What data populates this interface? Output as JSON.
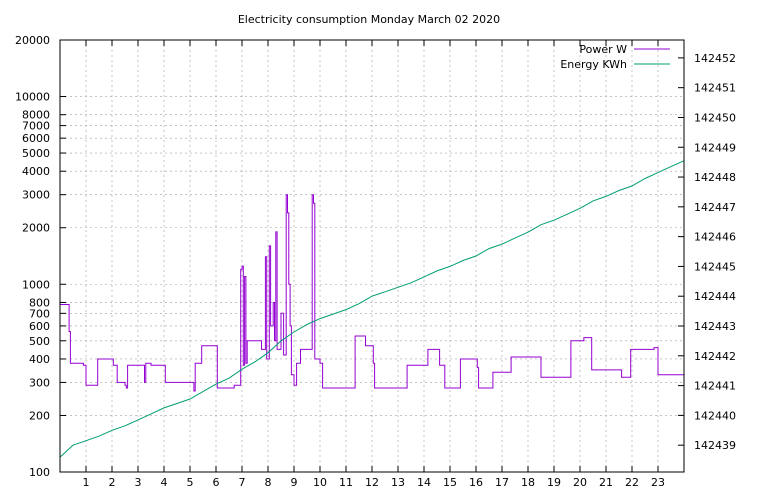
{
  "chart_data": {
    "type": "line",
    "title": "Electricity consumption Monday March 02 2020",
    "xlabel": "",
    "ylabel": "",
    "x_unit": "hour of day",
    "xlim": [
      0,
      24
    ],
    "x_ticks": [
      1,
      2,
      3,
      4,
      5,
      6,
      7,
      8,
      9,
      10,
      11,
      12,
      13,
      14,
      15,
      16,
      17,
      18,
      19,
      20,
      21,
      22,
      23
    ],
    "x_tick_labels": [
      "1",
      "2",
      "3",
      "4",
      "5",
      "6",
      "7",
      "8",
      "9",
      "10",
      "11",
      "12",
      "13",
      "14",
      "15",
      "16",
      "17",
      "18",
      "19",
      "20",
      "21",
      "22",
      "23"
    ],
    "y_left": {
      "scale": "log",
      "lim": [
        100,
        20000
      ],
      "ticks": [
        100,
        200,
        300,
        400,
        500,
        600,
        700,
        800,
        1000,
        2000,
        3000,
        4000,
        5000,
        6000,
        7000,
        8000,
        10000,
        20000
      ],
      "tick_labels": [
        "100",
        "200",
        "300",
        "400",
        "500",
        "600",
        "700",
        "800",
        "1000",
        "2000",
        "3000",
        "4000",
        "5000",
        "6000",
        "7000",
        "8000",
        "10000",
        "20000"
      ]
    },
    "y_right": {
      "scale": "linear",
      "lim": [
        142438.1,
        142452.6
      ],
      "ticks": [
        142439,
        142440,
        142441,
        142442,
        142443,
        142444,
        142445,
        142446,
        142447,
        142448,
        142449,
        142450,
        142451,
        142452
      ],
      "tick_labels": [
        "142439",
        "142440",
        "142441",
        "142442",
        "142443",
        "142444",
        "142445",
        "142446",
        "142447",
        "142448",
        "142449",
        "142450",
        "142451",
        "142452"
      ]
    },
    "grid": true,
    "legend_position": "top-right",
    "series": [
      {
        "name": "Power W",
        "axis": "left",
        "color": "#9400d3",
        "step": true,
        "points": [
          [
            0.0,
            780
          ],
          [
            0.35,
            780
          ],
          [
            0.35,
            560
          ],
          [
            0.4,
            380
          ],
          [
            0.55,
            380
          ],
          [
            0.9,
            370
          ],
          [
            1.0,
            290
          ],
          [
            1.4,
            290
          ],
          [
            1.45,
            400
          ],
          [
            2.0,
            400
          ],
          [
            2.05,
            370
          ],
          [
            2.2,
            300
          ],
          [
            2.5,
            290
          ],
          [
            2.55,
            280
          ],
          [
            2.6,
            370
          ],
          [
            3.2,
            370
          ],
          [
            3.25,
            300
          ],
          [
            3.3,
            380
          ],
          [
            3.5,
            370
          ],
          [
            4.0,
            370
          ],
          [
            4.05,
            300
          ],
          [
            5.1,
            300
          ],
          [
            5.15,
            270
          ],
          [
            5.2,
            380
          ],
          [
            5.4,
            380
          ],
          [
            5.45,
            470
          ],
          [
            5.95,
            470
          ],
          [
            6.05,
            280
          ],
          [
            6.5,
            280
          ],
          [
            6.7,
            290
          ],
          [
            6.9,
            290
          ],
          [
            6.95,
            1200
          ],
          [
            7.0,
            1250
          ],
          [
            7.05,
            370
          ],
          [
            7.1,
            1100
          ],
          [
            7.15,
            380
          ],
          [
            7.2,
            500
          ],
          [
            7.7,
            500
          ],
          [
            7.75,
            450
          ],
          [
            7.9,
            1400
          ],
          [
            7.95,
            400
          ],
          [
            8.05,
            1600
          ],
          [
            8.1,
            600
          ],
          [
            8.2,
            800
          ],
          [
            8.25,
            500
          ],
          [
            8.3,
            1900
          ],
          [
            8.35,
            450
          ],
          [
            8.5,
            700
          ],
          [
            8.6,
            420
          ],
          [
            8.7,
            3000
          ],
          [
            8.75,
            2400
          ],
          [
            8.8,
            1000
          ],
          [
            8.85,
            600
          ],
          [
            8.9,
            330
          ],
          [
            9.0,
            290
          ],
          [
            9.1,
            380
          ],
          [
            9.25,
            450
          ],
          [
            9.6,
            450
          ],
          [
            9.7,
            3000
          ],
          [
            9.75,
            2700
          ],
          [
            9.8,
            400
          ],
          [
            10.0,
            380
          ],
          [
            10.1,
            280
          ],
          [
            11.3,
            280
          ],
          [
            11.35,
            530
          ],
          [
            11.7,
            530
          ],
          [
            11.75,
            470
          ],
          [
            12.0,
            470
          ],
          [
            12.05,
            380
          ],
          [
            12.1,
            280
          ],
          [
            13.3,
            280
          ],
          [
            13.35,
            370
          ],
          [
            14.1,
            370
          ],
          [
            14.15,
            450
          ],
          [
            14.55,
            450
          ],
          [
            14.6,
            370
          ],
          [
            14.75,
            370
          ],
          [
            14.8,
            280
          ],
          [
            15.35,
            280
          ],
          [
            15.4,
            400
          ],
          [
            16.0,
            400
          ],
          [
            16.05,
            360
          ],
          [
            16.1,
            280
          ],
          [
            16.6,
            280
          ],
          [
            16.65,
            340
          ],
          [
            17.3,
            340
          ],
          [
            17.35,
            410
          ],
          [
            18.45,
            410
          ],
          [
            18.5,
            320
          ],
          [
            19.6,
            320
          ],
          [
            19.65,
            500
          ],
          [
            20.1,
            500
          ],
          [
            20.15,
            520
          ],
          [
            20.4,
            520
          ],
          [
            20.45,
            350
          ],
          [
            21.55,
            350
          ],
          [
            21.6,
            320
          ],
          [
            21.9,
            320
          ],
          [
            21.95,
            450
          ],
          [
            22.8,
            450
          ],
          [
            22.85,
            460
          ],
          [
            22.95,
            460
          ],
          [
            23.0,
            330
          ],
          [
            24.0,
            330
          ],
          [
            24.0,
            440
          ]
        ]
      },
      {
        "name": "Energy KWh",
        "axis": "right",
        "color": "#009e73",
        "step": false,
        "points": [
          [
            0.0,
            142438.6
          ],
          [
            0.5,
            142439.0
          ],
          [
            1.0,
            142439.15
          ],
          [
            1.5,
            142439.3
          ],
          [
            2.0,
            142439.5
          ],
          [
            2.5,
            142439.65
          ],
          [
            3.0,
            142439.85
          ],
          [
            3.5,
            142440.05
          ],
          [
            4.0,
            142440.25
          ],
          [
            4.5,
            142440.4
          ],
          [
            5.0,
            142440.55
          ],
          [
            5.5,
            142440.8
          ],
          [
            6.0,
            142441.05
          ],
          [
            6.5,
            142441.25
          ],
          [
            7.0,
            142441.55
          ],
          [
            7.5,
            142441.8
          ],
          [
            8.0,
            142442.1
          ],
          [
            8.5,
            142442.5
          ],
          [
            9.0,
            142442.8
          ],
          [
            9.5,
            142443.05
          ],
          [
            10.0,
            142443.25
          ],
          [
            10.5,
            142443.4
          ],
          [
            11.0,
            142443.55
          ],
          [
            11.5,
            142443.75
          ],
          [
            12.0,
            142444.0
          ],
          [
            12.5,
            142444.15
          ],
          [
            13.0,
            142444.3
          ],
          [
            13.5,
            142444.45
          ],
          [
            14.0,
            142444.65
          ],
          [
            14.5,
            142444.85
          ],
          [
            15.0,
            142445.0
          ],
          [
            15.5,
            142445.2
          ],
          [
            16.0,
            142445.35
          ],
          [
            16.5,
            142445.6
          ],
          [
            17.0,
            142445.75
          ],
          [
            17.5,
            142445.95
          ],
          [
            18.0,
            142446.15
          ],
          [
            18.5,
            142446.4
          ],
          [
            19.0,
            142446.55
          ],
          [
            19.5,
            142446.75
          ],
          [
            20.0,
            142446.95
          ],
          [
            20.5,
            142447.2
          ],
          [
            21.0,
            142447.35
          ],
          [
            21.5,
            142447.55
          ],
          [
            22.0,
            142447.7
          ],
          [
            22.5,
            142447.95
          ],
          [
            23.0,
            142448.15
          ],
          [
            23.5,
            142448.35
          ],
          [
            24.0,
            142448.55
          ]
        ]
      }
    ]
  }
}
